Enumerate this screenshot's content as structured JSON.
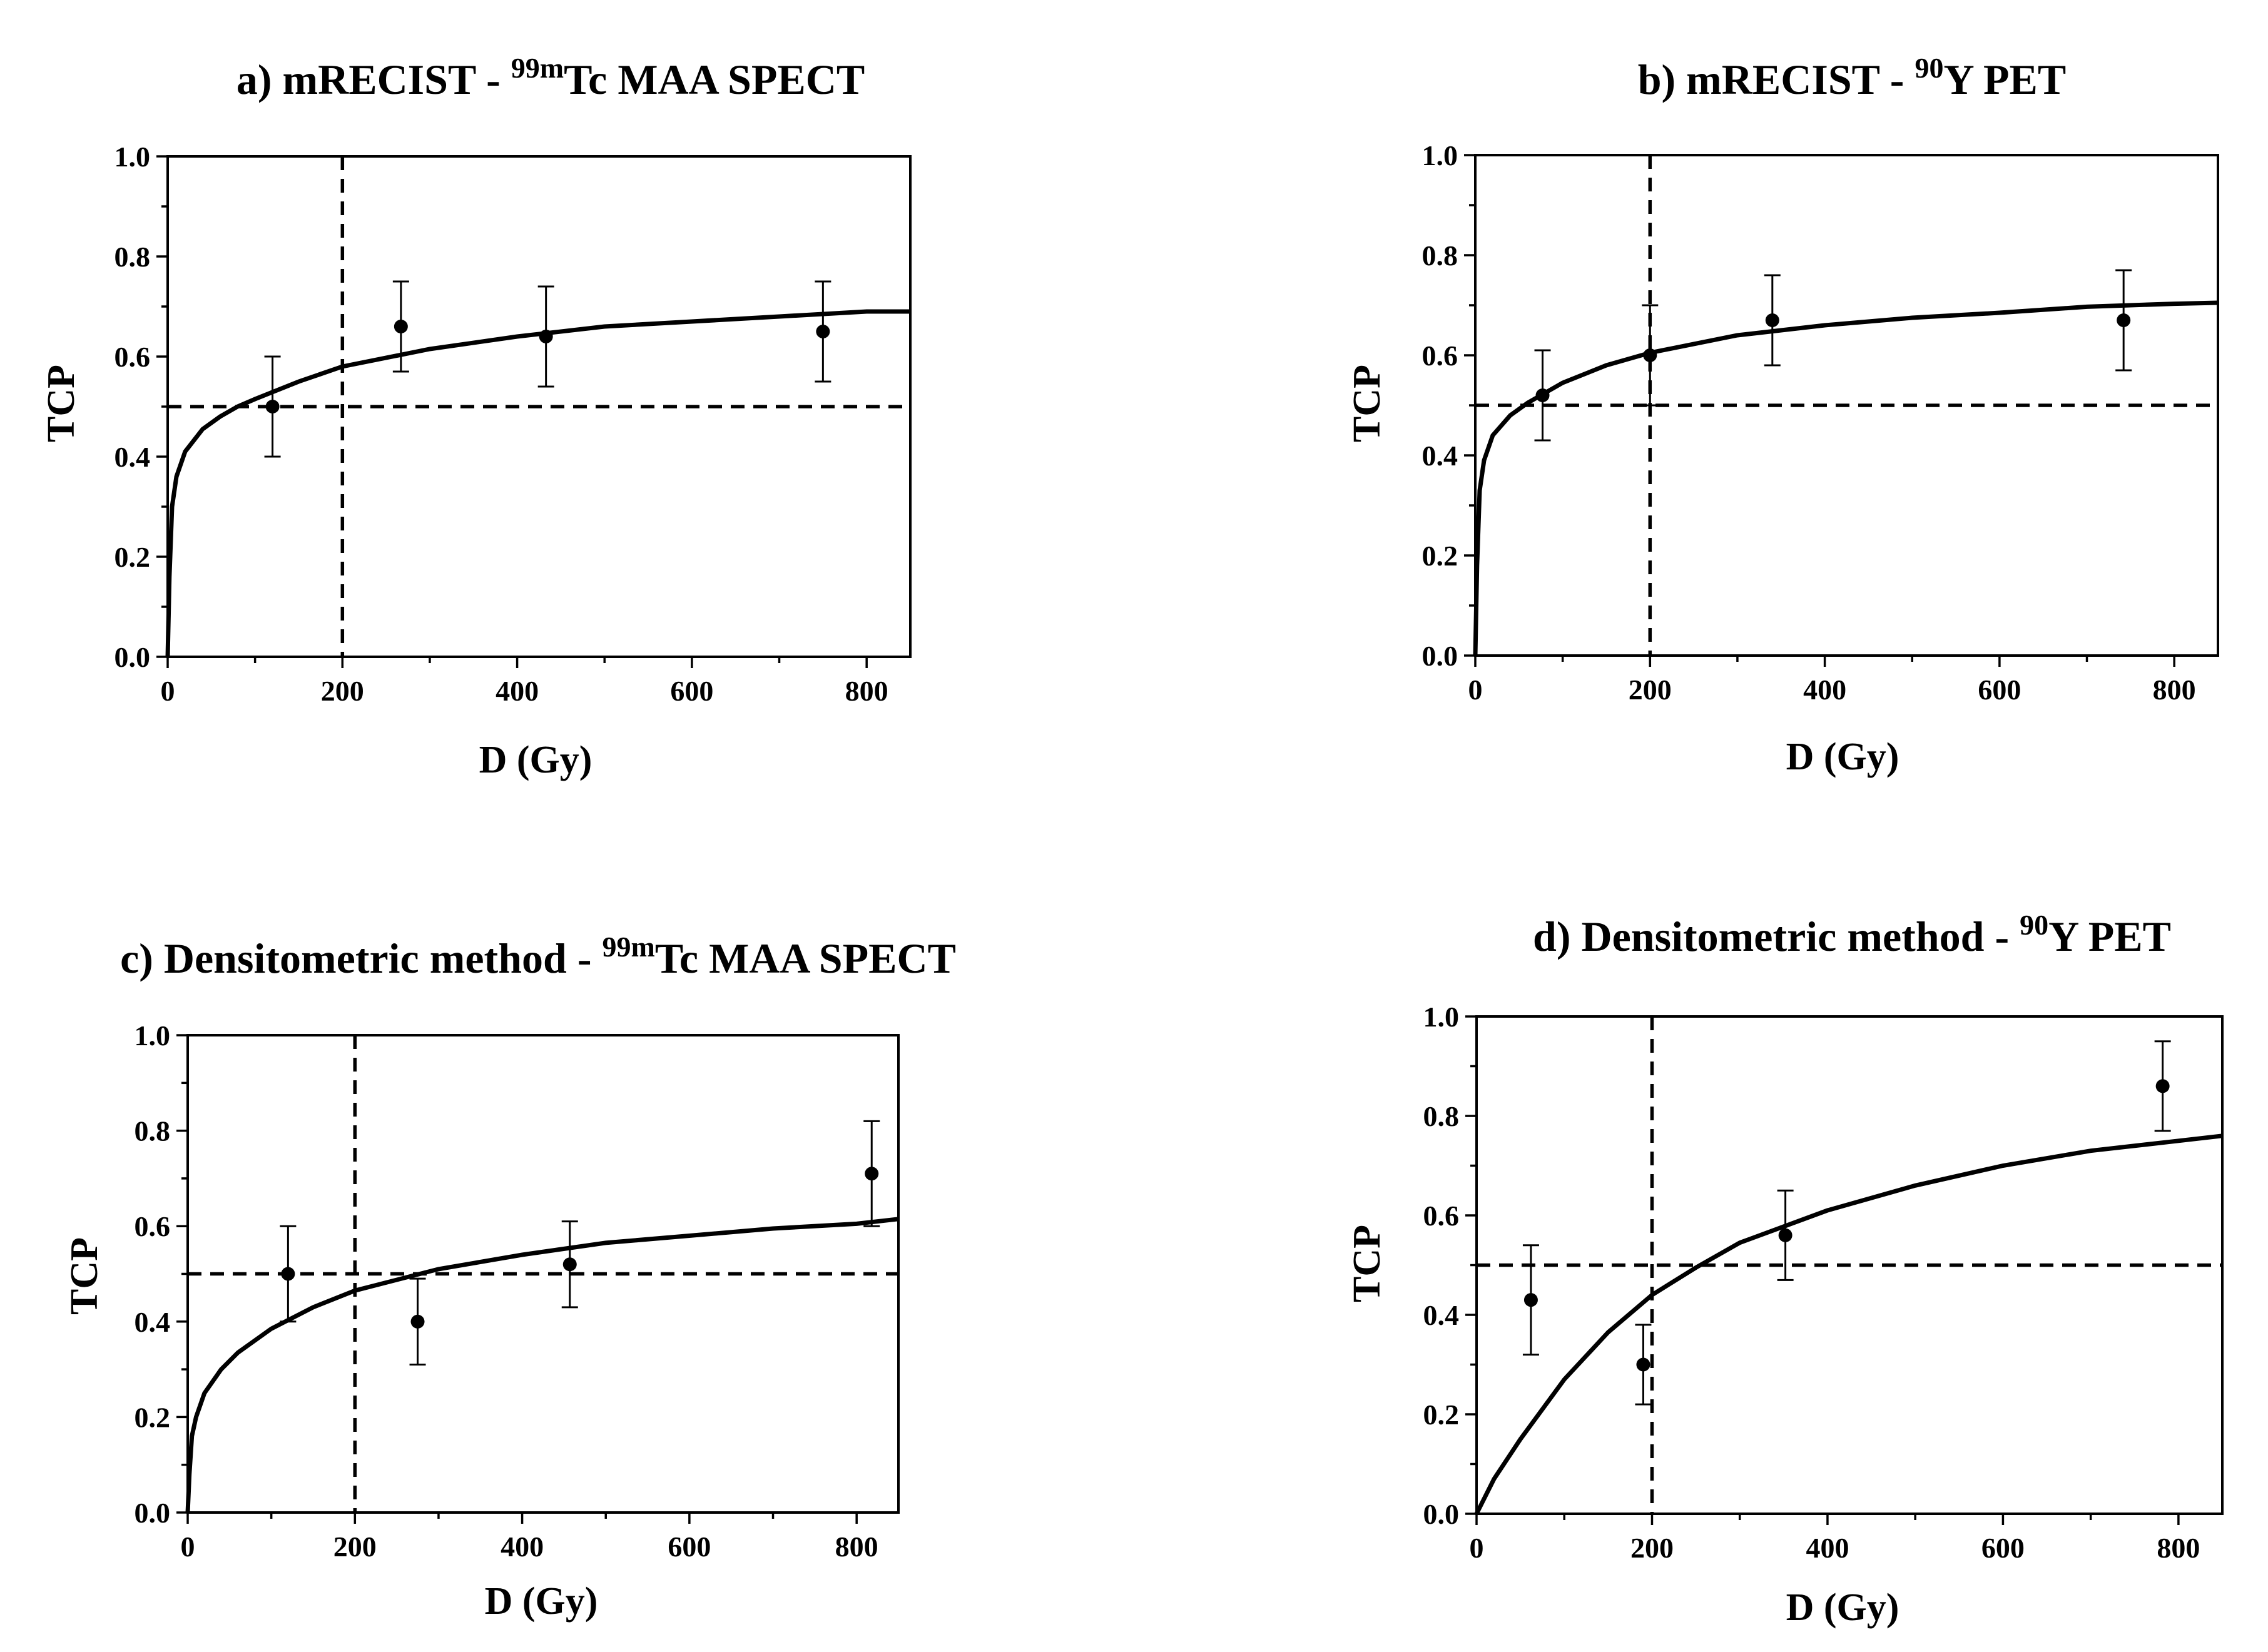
{
  "chart_data": [
    {
      "type": "scatter",
      "title": {
        "prefix": "a) mRECIST - ",
        "isotope": "99m",
        "suffix": "Tc MAA SPECT"
      },
      "xlabel": "D (Gy)",
      "ylabel": "TCP",
      "xlim": [
        0,
        850
      ],
      "ylim": [
        0,
        1
      ],
      "xticks": [
        "0",
        "200",
        "400",
        "600",
        "800"
      ],
      "yticks": [
        "0.0",
        "0.2",
        "0.4",
        "0.6",
        "0.8",
        "1.0"
      ],
      "reference_lines": {
        "x": 200,
        "y": 0.5
      },
      "points": [
        {
          "x": 120,
          "y": 0.5,
          "err_low": 0.4,
          "err_high": 0.6
        },
        {
          "x": 267,
          "y": 0.66,
          "err_low": 0.57,
          "err_high": 0.75
        },
        {
          "x": 433,
          "y": 0.64,
          "err_low": 0.54,
          "err_high": 0.74
        },
        {
          "x": 750,
          "y": 0.65,
          "err_low": 0.55,
          "err_high": 0.75
        }
      ],
      "fit_curve": [
        [
          0,
          0.0
        ],
        [
          2,
          0.16
        ],
        [
          5,
          0.3
        ],
        [
          10,
          0.36
        ],
        [
          20,
          0.41
        ],
        [
          40,
          0.455
        ],
        [
          60,
          0.48
        ],
        [
          80,
          0.5
        ],
        [
          100,
          0.515
        ],
        [
          150,
          0.55
        ],
        [
          200,
          0.58
        ],
        [
          300,
          0.615
        ],
        [
          400,
          0.64
        ],
        [
          500,
          0.66
        ],
        [
          600,
          0.67
        ],
        [
          700,
          0.68
        ],
        [
          800,
          0.69
        ],
        [
          850,
          0.69
        ]
      ]
    },
    {
      "type": "scatter",
      "title": {
        "prefix": "b) mRECIST - ",
        "isotope": "90",
        "suffix": "Y PET"
      },
      "xlabel": "D (Gy)",
      "ylabel": "TCP",
      "xlim": [
        0,
        850
      ],
      "ylim": [
        0,
        1
      ],
      "xticks": [
        "0",
        "200",
        "400",
        "600",
        "800"
      ],
      "yticks": [
        "0.0",
        "0.2",
        "0.4",
        "0.6",
        "0.8",
        "1.0"
      ],
      "reference_lines": {
        "x": 200,
        "y": 0.5
      },
      "points": [
        {
          "x": 77,
          "y": 0.52,
          "err_low": 0.43,
          "err_high": 0.61
        },
        {
          "x": 200,
          "y": 0.6,
          "err_low": 0.5,
          "err_high": 0.7
        },
        {
          "x": 340,
          "y": 0.67,
          "err_low": 0.58,
          "err_high": 0.76
        },
        {
          "x": 742,
          "y": 0.67,
          "err_low": 0.57,
          "err_high": 0.77
        }
      ],
      "fit_curve": [
        [
          0,
          0.0
        ],
        [
          2,
          0.18
        ],
        [
          5,
          0.33
        ],
        [
          10,
          0.39
        ],
        [
          20,
          0.44
        ],
        [
          40,
          0.48
        ],
        [
          60,
          0.505
        ],
        [
          80,
          0.525
        ],
        [
          100,
          0.545
        ],
        [
          150,
          0.58
        ],
        [
          200,
          0.605
        ],
        [
          300,
          0.64
        ],
        [
          400,
          0.66
        ],
        [
          500,
          0.675
        ],
        [
          600,
          0.685
        ],
        [
          700,
          0.697
        ],
        [
          800,
          0.703
        ],
        [
          850,
          0.705
        ]
      ]
    },
    {
      "type": "scatter",
      "title": {
        "prefix": "c) Densitometric method - ",
        "isotope": "99m",
        "suffix": "Tc MAA SPECT"
      },
      "xlabel": "D (Gy)",
      "ylabel": "TCP",
      "xlim": [
        0,
        850
      ],
      "ylim": [
        0,
        1
      ],
      "xticks": [
        "0",
        "200",
        "400",
        "600",
        "800"
      ],
      "yticks": [
        "0.0",
        "0.2",
        "0.4",
        "0.6",
        "0.8",
        "1.0"
      ],
      "reference_lines": {
        "x": 200,
        "y": 0.5
      },
      "points": [
        {
          "x": 120,
          "y": 0.5,
          "err_low": 0.4,
          "err_high": 0.6
        },
        {
          "x": 275,
          "y": 0.4,
          "err_low": 0.31,
          "err_high": 0.49
        },
        {
          "x": 457,
          "y": 0.52,
          "err_low": 0.43,
          "err_high": 0.61
        },
        {
          "x": 818,
          "y": 0.71,
          "err_low": 0.6,
          "err_high": 0.82
        }
      ],
      "fit_curve": [
        [
          0,
          0.0
        ],
        [
          2,
          0.08
        ],
        [
          5,
          0.16
        ],
        [
          10,
          0.2
        ],
        [
          20,
          0.25
        ],
        [
          40,
          0.3
        ],
        [
          60,
          0.335
        ],
        [
          80,
          0.36
        ],
        [
          100,
          0.385
        ],
        [
          150,
          0.43
        ],
        [
          200,
          0.465
        ],
        [
          300,
          0.51
        ],
        [
          400,
          0.54
        ],
        [
          500,
          0.565
        ],
        [
          600,
          0.58
        ],
        [
          700,
          0.595
        ],
        [
          800,
          0.605
        ],
        [
          850,
          0.615
        ]
      ]
    },
    {
      "type": "scatter",
      "title": {
        "prefix": "d) Densitometric method - ",
        "isotope": "90",
        "suffix": "Y PET"
      },
      "xlabel": "D (Gy)",
      "ylabel": "TCP",
      "xlim": [
        0,
        850
      ],
      "ylim": [
        0,
        1
      ],
      "xticks": [
        "0",
        "200",
        "400",
        "600",
        "800"
      ],
      "yticks": [
        "0.0",
        "0.2",
        "0.4",
        "0.6",
        "0.8",
        "1.0"
      ],
      "reference_lines": {
        "x": 200,
        "y": 0.5
      },
      "points": [
        {
          "x": 62,
          "y": 0.43,
          "err_low": 0.32,
          "err_high": 0.54
        },
        {
          "x": 190,
          "y": 0.3,
          "err_low": 0.22,
          "err_high": 0.38
        },
        {
          "x": 352,
          "y": 0.56,
          "err_low": 0.47,
          "err_high": 0.65
        },
        {
          "x": 782,
          "y": 0.86,
          "err_low": 0.77,
          "err_high": 0.95
        }
      ],
      "fit_curve": [
        [
          0,
          0.0
        ],
        [
          20,
          0.07
        ],
        [
          50,
          0.15
        ],
        [
          100,
          0.27
        ],
        [
          150,
          0.365
        ],
        [
          200,
          0.44
        ],
        [
          250,
          0.495
        ],
        [
          300,
          0.545
        ],
        [
          400,
          0.61
        ],
        [
          500,
          0.66
        ],
        [
          600,
          0.7
        ],
        [
          700,
          0.73
        ],
        [
          800,
          0.75
        ],
        [
          850,
          0.76
        ]
      ]
    }
  ]
}
